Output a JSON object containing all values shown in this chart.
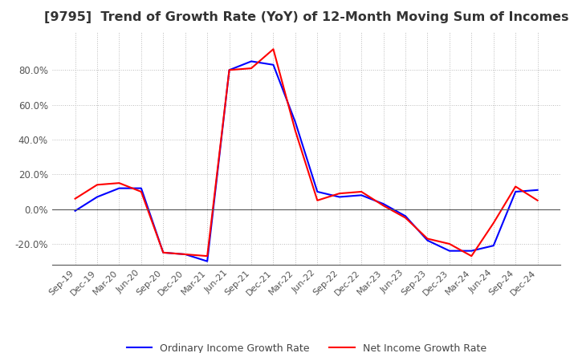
{
  "title": "[9795]  Trend of Growth Rate (YoY) of 12-Month Moving Sum of Incomes",
  "title_fontsize": 11.5,
  "background_color": "#ffffff",
  "grid_color": "#aaaaaa",
  "legend_labels": [
    "Ordinary Income Growth Rate",
    "Net Income Growth Rate"
  ],
  "line_colors": [
    "#0000ff",
    "#ff0000"
  ],
  "x_labels": [
    "Sep-19",
    "Dec-19",
    "Mar-20",
    "Jun-20",
    "Sep-20",
    "Dec-20",
    "Mar-21",
    "Jun-21",
    "Sep-21",
    "Dec-21",
    "Mar-22",
    "Jun-22",
    "Sep-22",
    "Dec-22",
    "Mar-23",
    "Jun-23",
    "Sep-23",
    "Dec-23",
    "Mar-24",
    "Jun-24",
    "Sep-24",
    "Dec-24"
  ],
  "ordinary_income": [
    -0.01,
    0.07,
    0.12,
    0.12,
    -0.25,
    -0.26,
    -0.3,
    0.8,
    0.85,
    0.83,
    0.5,
    0.1,
    0.07,
    0.08,
    0.03,
    -0.04,
    -0.18,
    -0.24,
    -0.24,
    -0.21,
    0.1,
    0.11
  ],
  "net_income": [
    0.06,
    0.14,
    0.15,
    0.1,
    -0.25,
    -0.26,
    -0.27,
    0.8,
    0.81,
    0.92,
    0.45,
    0.05,
    0.09,
    0.1,
    0.02,
    -0.05,
    -0.17,
    -0.2,
    -0.27,
    -0.08,
    0.13,
    0.05
  ],
  "ylim": [
    -0.32,
    1.02
  ],
  "yticks": [
    -0.2,
    0.0,
    0.2,
    0.4,
    0.6,
    0.8
  ],
  "figsize": [
    7.2,
    4.4
  ],
  "dpi": 100
}
